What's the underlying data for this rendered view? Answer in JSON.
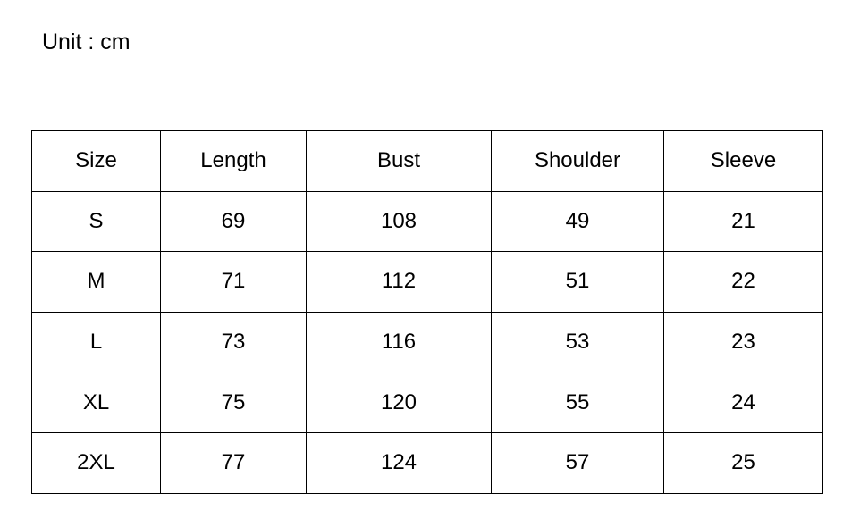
{
  "unit_label": "Unit : cm",
  "table": {
    "headers": [
      "Size",
      "Length",
      "Bust",
      "Shoulder",
      "Sleeve"
    ],
    "rows": [
      [
        "S",
        "69",
        "108",
        "49",
        "21"
      ],
      [
        "M",
        "71",
        "112",
        "51",
        "22"
      ],
      [
        "L",
        "73",
        "116",
        "53",
        "23"
      ],
      [
        "XL",
        "75",
        "120",
        "55",
        "24"
      ],
      [
        "2XL",
        "77",
        "124",
        "57",
        "25"
      ]
    ]
  }
}
